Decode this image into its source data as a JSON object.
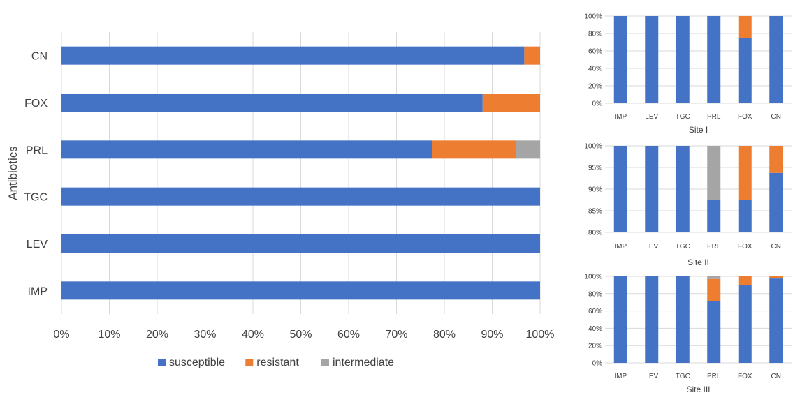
{
  "colors": {
    "susceptible": "#4472C4",
    "resistant": "#ED7D31",
    "intermediate": "#A5A5A5",
    "grid": "#D9D9D9",
    "text": "#404040"
  },
  "chart_data": [
    {
      "type": "bar",
      "orientation": "horizontal",
      "stacked": "percent",
      "title": "",
      "ylabel": "Antibiotics",
      "xlabel": "",
      "categories": [
        "IMP",
        "LEV",
        "TGC",
        "PRL",
        "FOX",
        "CN"
      ],
      "xlim": [
        0,
        100
      ],
      "xticks": [
        "0%",
        "10%",
        "20%",
        "30%",
        "40%",
        "50%",
        "60%",
        "70%",
        "80%",
        "90%",
        "100%"
      ],
      "grid": true,
      "legend": "bottom",
      "series": [
        {
          "name": "susceptible",
          "values": [
            100,
            100,
            100,
            77.5,
            88,
            96.7
          ]
        },
        {
          "name": "resistant",
          "values": [
            0,
            0,
            0,
            17.5,
            12,
            3.3
          ]
        },
        {
          "name": "intermediate",
          "values": [
            0,
            0,
            0,
            5,
            0,
            0
          ]
        }
      ]
    },
    {
      "type": "bar",
      "orientation": "vertical",
      "stacked": "percent",
      "title": "Site I",
      "categories": [
        "IMP",
        "LEV",
        "TGC",
        "PRL",
        "FOX",
        "CN"
      ],
      "ylim": [
        0,
        100
      ],
      "yticks": [
        "0%",
        "20%",
        "40%",
        "60%",
        "80%",
        "100%"
      ],
      "series": [
        {
          "name": "susceptible",
          "values": [
            100,
            100,
            100,
            100,
            75,
            100
          ]
        },
        {
          "name": "resistant",
          "values": [
            0,
            0,
            0,
            0,
            25,
            0
          ]
        },
        {
          "name": "intermediate",
          "values": [
            0,
            0,
            0,
            0,
            0,
            0
          ]
        }
      ]
    },
    {
      "type": "bar",
      "orientation": "vertical",
      "stacked": "percent",
      "title": "Site II",
      "categories": [
        "IMP",
        "LEV",
        "TGC",
        "PRL",
        "FOX",
        "CN"
      ],
      "ylim": [
        80,
        100
      ],
      "yticks": [
        "80%",
        "85%",
        "90%",
        "95%",
        "100%"
      ],
      "series": [
        {
          "name": "susceptible",
          "values": [
            100,
            100,
            100,
            87.5,
            87.5,
            93.75
          ]
        },
        {
          "name": "resistant",
          "values": [
            0,
            0,
            0,
            0,
            12.5,
            6.25
          ]
        },
        {
          "name": "intermediate",
          "values": [
            0,
            0,
            0,
            12.5,
            0,
            0
          ]
        }
      ]
    },
    {
      "type": "bar",
      "orientation": "vertical",
      "stacked": "percent",
      "title": "Site III",
      "categories": [
        "IMP",
        "LEV",
        "TGC",
        "PRL",
        "FOX",
        "CN"
      ],
      "ylim": [
        0,
        100
      ],
      "yticks": [
        "0%",
        "20%",
        "40%",
        "60%",
        "80%",
        "100%"
      ],
      "series": [
        {
          "name": "susceptible",
          "values": [
            100,
            100,
            100,
            71,
            89.5,
            97.5
          ]
        },
        {
          "name": "resistant",
          "values": [
            0,
            0,
            0,
            26,
            10.5,
            2.5
          ]
        },
        {
          "name": "intermediate",
          "values": [
            0,
            0,
            0,
            3,
            0,
            0
          ]
        }
      ]
    }
  ]
}
